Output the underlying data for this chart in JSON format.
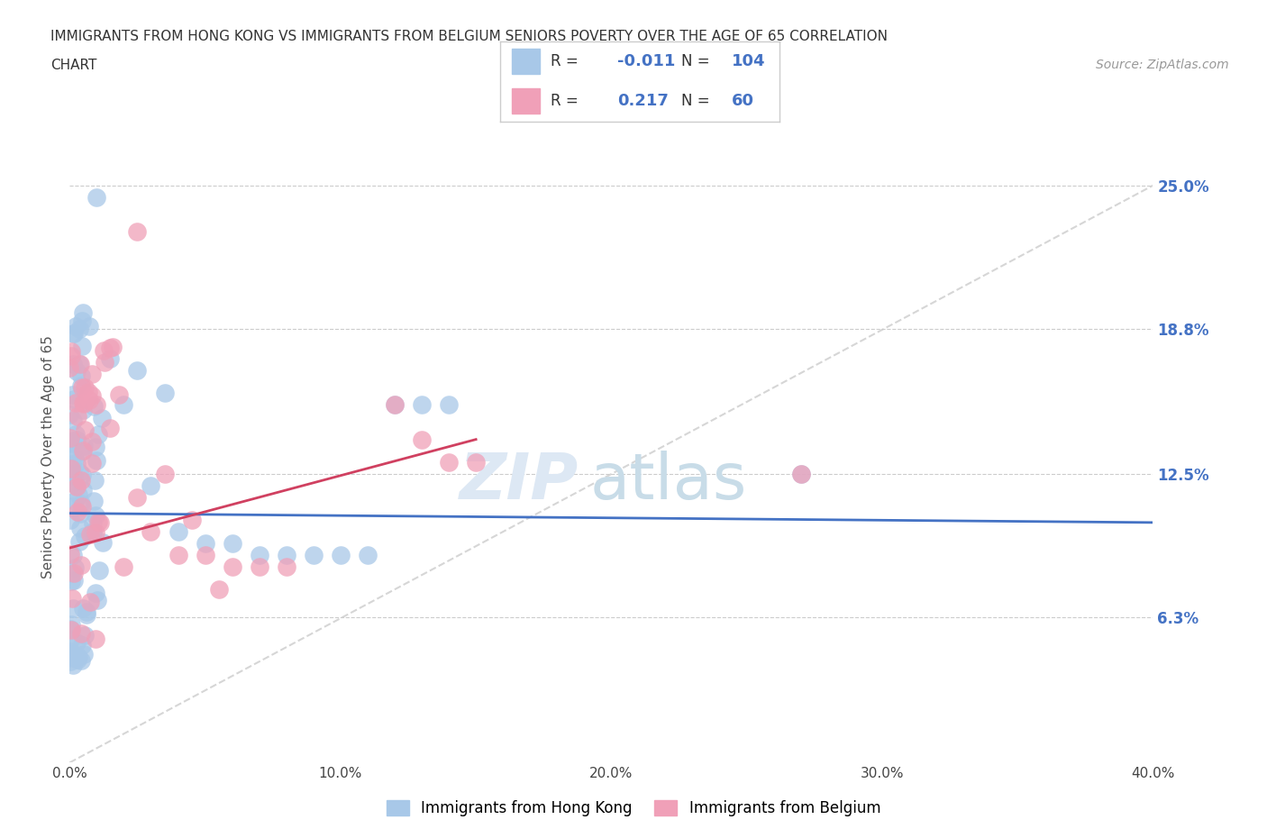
{
  "title_line1": "IMMIGRANTS FROM HONG KONG VS IMMIGRANTS FROM BELGIUM SENIORS POVERTY OVER THE AGE OF 65 CORRELATION",
  "title_line2": "CHART",
  "source": "Source: ZipAtlas.com",
  "ylabel": "Seniors Poverty Over the Age of 65",
  "xlim": [
    0.0,
    0.4
  ],
  "ylim": [
    0.0,
    0.265
  ],
  "xtick_labels": [
    "0.0%",
    "",
    "10.0%",
    "",
    "20.0%",
    "",
    "30.0%",
    "",
    "40.0%"
  ],
  "xtick_values": [
    0.0,
    0.05,
    0.1,
    0.15,
    0.2,
    0.25,
    0.3,
    0.35,
    0.4
  ],
  "ytick_labels": [
    "6.3%",
    "12.5%",
    "18.8%",
    "25.0%"
  ],
  "ytick_values": [
    0.063,
    0.125,
    0.188,
    0.25
  ],
  "hk_color": "#a8c8e8",
  "be_color": "#f0a0b8",
  "hk_R": -0.011,
  "hk_N": 104,
  "be_R": 0.217,
  "be_N": 60,
  "trend_hk_color": "#4472c4",
  "trend_be_color": "#d04060",
  "background_color": "#ffffff",
  "legend_label_hk": "Immigrants from Hong Kong",
  "legend_label_be": "Immigrants from Belgium",
  "watermark_zip": "ZIP",
  "watermark_atlas": "atlas"
}
